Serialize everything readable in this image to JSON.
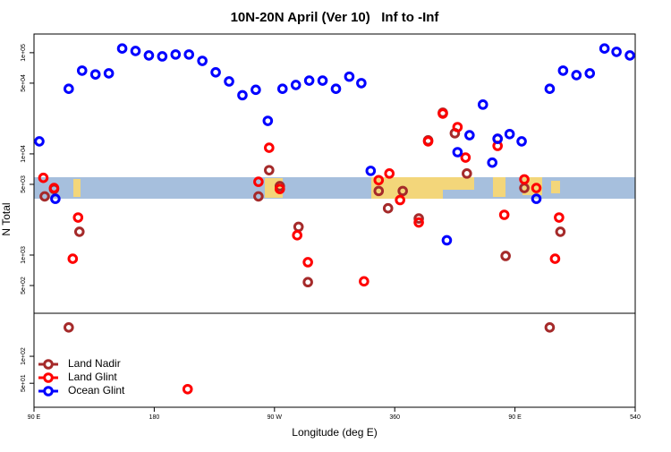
{
  "chart_data": [
    {
      "type": "scatter",
      "title": "10N-20N April (Ver 10)   Inf to -Inf",
      "ylabel": "N Total",
      "log": true,
      "xlim": [
        90,
        540
      ],
      "ylim": [
        266,
        153000
      ],
      "yticks": [
        {
          "value": 500,
          "label": "5e+02"
        },
        {
          "value": 1000,
          "label": "1e+03"
        },
        {
          "value": 5000,
          "label": "5e+03"
        },
        {
          "value": 10000,
          "label": "1e+04"
        },
        {
          "value": 50000,
          "label": "5e+04"
        },
        {
          "value": 100000,
          "label": "1e+05"
        }
      ],
      "series": [
        {
          "color": "#a52a2a",
          "x": [
            98,
            105,
            124,
            258,
            266,
            274,
            288,
            295,
            348,
            355,
            366,
            378,
            385,
            396,
            405,
            414,
            437,
            443,
            457,
            484
          ],
          "values": [
            3800,
            4500,
            1700,
            3800,
            6900,
            4800,
            1900,
            540,
            4300,
            2900,
            4300,
            2300,
            13600,
            25500,
            16000,
            6400,
            14100,
            980,
            4600,
            1700
          ]
        },
        {
          "color": "#ff0000",
          "x": [
            97,
            105,
            119,
            123,
            258,
            266,
            274,
            287,
            295,
            337,
            348,
            356,
            364,
            378,
            385,
            396,
            407,
            413,
            437,
            442,
            457,
            466,
            480,
            483
          ],
          "values": [
            5800,
            4600,
            920,
            2350,
            5300,
            11500,
            4500,
            1570,
            850,
            550,
            5500,
            6400,
            3500,
            2100,
            13300,
            25000,
            18400,
            9200,
            12000,
            2500,
            5600,
            4600,
            920,
            2350
          ]
        },
        {
          "color": "#0000ff",
          "x": [
            94,
            106,
            116,
            126,
            136,
            146,
            156,
            166,
            176,
            186,
            196,
            206,
            216,
            226,
            236,
            246,
            256,
            265,
            276,
            286,
            296,
            306,
            316,
            326,
            335,
            342,
            399,
            407,
            416,
            426,
            433,
            437,
            446,
            455,
            466,
            476,
            486,
            496,
            506,
            517,
            526,
            536
          ],
          "values": [
            13300,
            3600,
            44000,
            66500,
            61000,
            62500,
            110000,
            104000,
            94000,
            92000,
            96000,
            96000,
            83000,
            64000,
            52000,
            38000,
            43000,
            21200,
            44000,
            48000,
            53000,
            53000,
            44000,
            58000,
            50000,
            6800,
            1400,
            10400,
            15300,
            30700,
            8200,
            14100,
            15700,
            13300,
            3600,
            44000,
            66500,
            60000,
            62500,
            110000,
            102000,
            94000
          ]
        }
      ]
    },
    {
      "type": "scatter",
      "xlabel": "Longitude (deg E)",
      "log": true,
      "legend": "lower left",
      "xlim": [
        90,
        540
      ],
      "ylim": [
        27,
        302
      ],
      "xticks": [
        {
          "value": 90,
          "label": "90 E"
        },
        180,
        {
          "value": 270,
          "label": "90 W"
        },
        360,
        {
          "value": 450,
          "label": "90 E"
        },
        540
      ],
      "yticks": [
        {
          "value": 50,
          "label": "5e+01"
        },
        {
          "value": 100,
          "label": "1e+02"
        }
      ],
      "series": [
        {
          "name": "Land Nadir",
          "color": "#a52a2a",
          "x": [
            116,
            476
          ],
          "values": [
            210,
            210
          ]
        },
        {
          "name": "Land Glint",
          "color": "#ff0000",
          "x": [
            205
          ],
          "values": [
            43
          ]
        },
        {
          "name": "Ocean Glint",
          "color": "#0000ff",
          "x": [],
          "values": []
        }
      ]
    }
  ]
}
